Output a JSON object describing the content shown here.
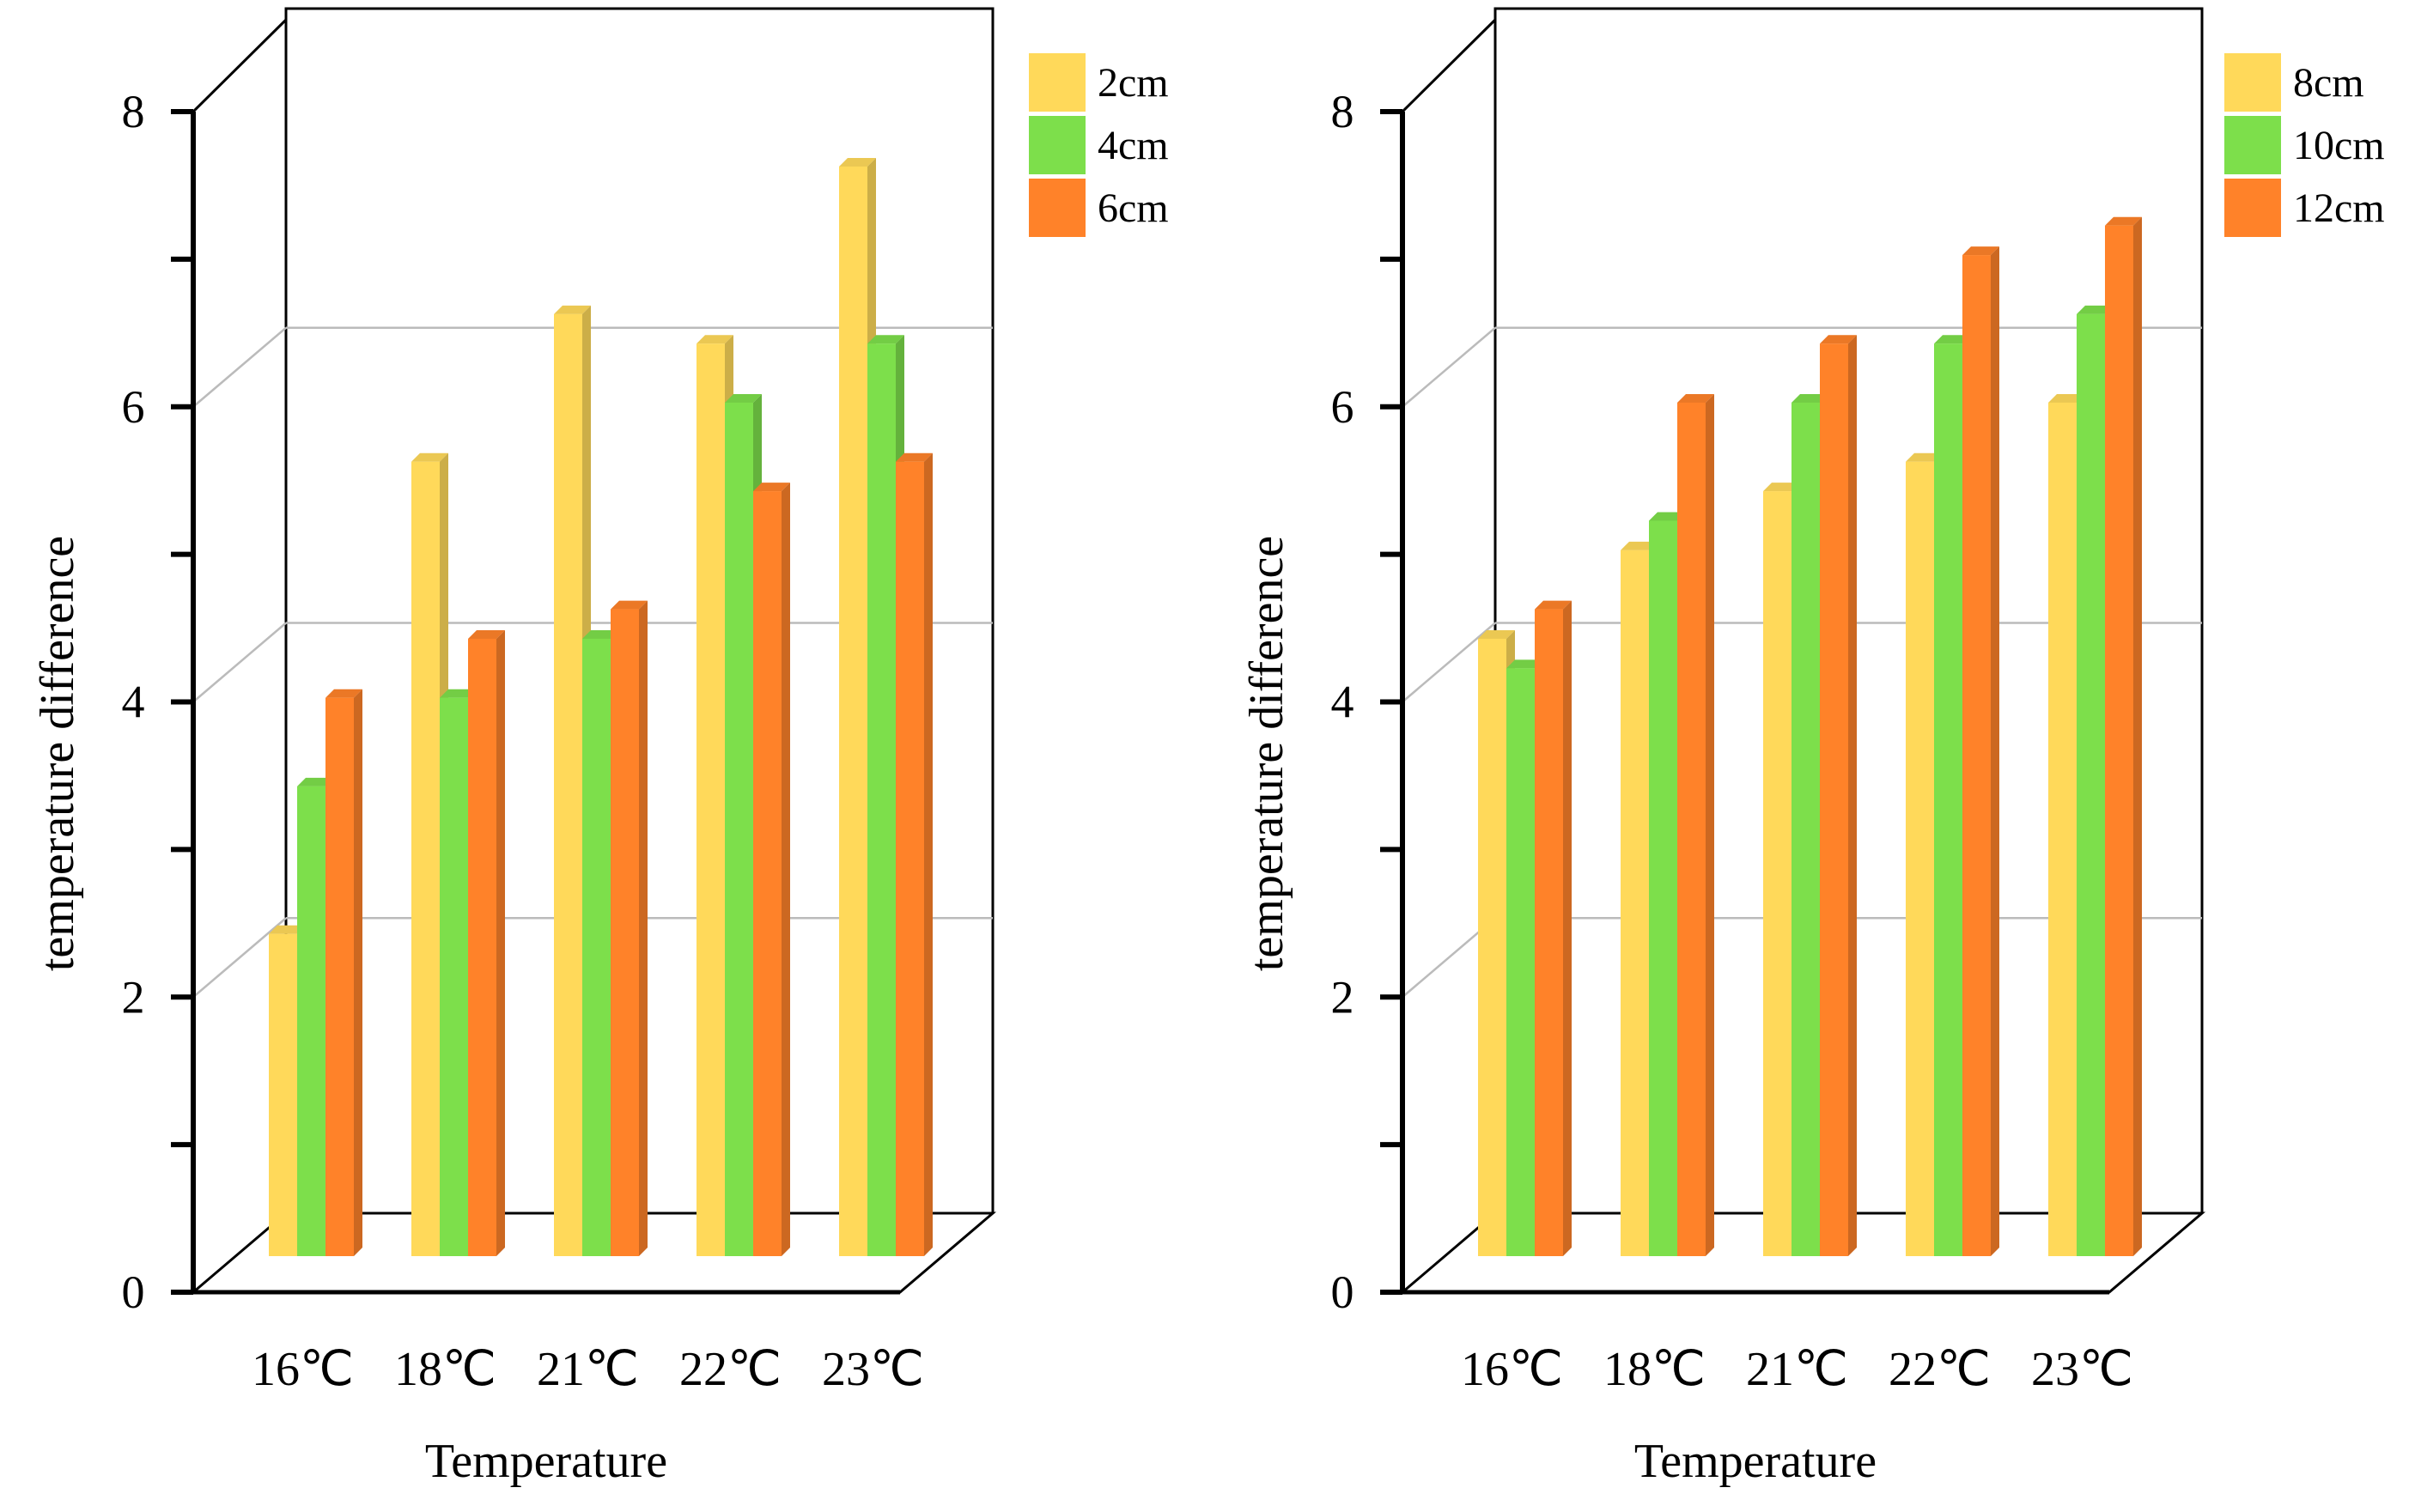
{
  "chart_data": [
    {
      "type": "bar",
      "title": "",
      "xlabel": "Temperature",
      "ylabel": "temperature difference",
      "ylim": [
        0,
        8
      ],
      "yticks": [
        "0",
        "2",
        "4",
        "6",
        "8"
      ],
      "grid": true,
      "legend_position": "top-right",
      "categories": [
        "16℃",
        "18℃",
        "21℃",
        "22℃",
        "23℃"
      ],
      "series": [
        {
          "name": "2cm",
          "color": "#FFD95A",
          "values": [
            2.3,
            5.5,
            6.5,
            6.3,
            7.5
          ]
        },
        {
          "name": "4cm",
          "color": "#7DDF4B",
          "values": [
            3.3,
            3.9,
            4.3,
            5.9,
            6.3
          ]
        },
        {
          "name": "6cm",
          "color": "#FF8229",
          "values": [
            3.9,
            4.3,
            4.5,
            5.3,
            5.5
          ]
        }
      ]
    },
    {
      "type": "bar",
      "title": "",
      "xlabel": "Temperature",
      "ylabel": "temperature difference",
      "ylim": [
        0,
        8
      ],
      "yticks": [
        "0",
        "2",
        "4",
        "6",
        "8"
      ],
      "grid": true,
      "legend_position": "top-right",
      "categories": [
        "16℃",
        "18℃",
        "21℃",
        "22℃",
        "23℃"
      ],
      "series": [
        {
          "name": "8cm",
          "color": "#FFD95A",
          "values": [
            4.3,
            4.9,
            5.3,
            5.5,
            5.9
          ]
        },
        {
          "name": "10cm",
          "color": "#7DDF4B",
          "values": [
            4.1,
            5.1,
            5.9,
            6.3,
            6.5
          ]
        },
        {
          "name": "12cm",
          "color": "#FF8229",
          "values": [
            4.5,
            5.9,
            6.3,
            6.9,
            7.1
          ]
        }
      ]
    }
  ]
}
